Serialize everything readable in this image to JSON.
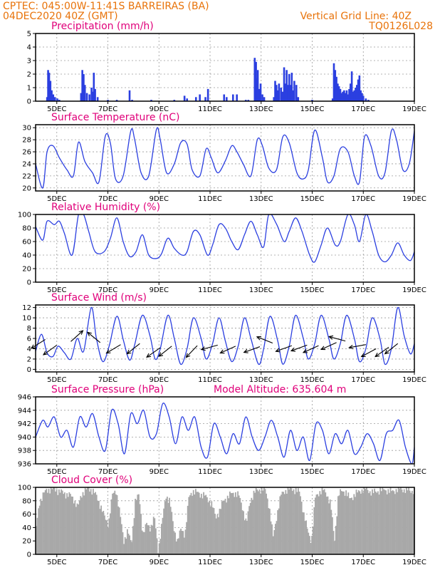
{
  "header": {
    "line1": "CPTEC:   045:00W-11:41S   BARREIRAS (BA)",
    "line2": "04DEC2020 40Z (GMT)",
    "grid_note": "Vertical Grid Line: 40Z",
    "code": "TQ0126L028"
  },
  "colors": {
    "header": "#e8730a",
    "title": "#e0007a",
    "line": "#2b3fe0",
    "bar": "#2b3fe0",
    "cloud": "#a8a8a8",
    "arrow": "#000000"
  },
  "x_tick_labels": [
    "5DEC",
    "7DEC",
    "9DEC",
    "11DEC",
    "13DEC",
    "15DEC",
    "17DEC",
    "19DEC"
  ],
  "model_altitude": "Model Altitude: 635.604  m",
  "chart_data": [
    {
      "id": "precip",
      "type": "bar",
      "title": "Precipitation (mm/h)",
      "xlim": [
        4.17,
        19.0
      ],
      "ylim": [
        0,
        5
      ],
      "yticks": [
        0,
        1,
        2,
        3,
        4,
        5
      ],
      "x": [
        4.62,
        4.66,
        4.7,
        4.75,
        4.8,
        4.86,
        4.93,
        5.02,
        5.1,
        5.95,
        6.0,
        6.05,
        6.1,
        6.18,
        6.28,
        6.36,
        6.4,
        6.45,
        6.5,
        6.6,
        7.0,
        7.35,
        7.85,
        7.95,
        8.7,
        9.6,
        10.0,
        10.1,
        10.45,
        10.6,
        10.82,
        10.92,
        11.55,
        11.65,
        11.9,
        12.05,
        12.4,
        12.5,
        12.75,
        12.8,
        12.83,
        12.87,
        12.92,
        12.98,
        13.05,
        13.12,
        13.5,
        13.55,
        13.6,
        13.65,
        13.7,
        13.78,
        13.85,
        13.9,
        13.95,
        14.0,
        14.05,
        14.1,
        14.15,
        14.2,
        14.25,
        14.3,
        14.38,
        14.45,
        15.0,
        15.8,
        15.85,
        15.9,
        15.95,
        16.0,
        16.05,
        16.1,
        16.15,
        16.2,
        16.25,
        16.3,
        16.35,
        16.4,
        16.45,
        16.5,
        16.55,
        16.6,
        16.65,
        16.7,
        16.75,
        16.8,
        16.85,
        16.9,
        16.95,
        17.0,
        17.1,
        17.2
      ],
      "values": [
        0.3,
        2.3,
        2.1,
        1.5,
        0.8,
        0.5,
        0.3,
        0.2,
        0.1,
        0.6,
        2.3,
        2.0,
        1.2,
        0.6,
        0.5,
        1.0,
        0.7,
        2.1,
        0.9,
        0.3,
        0.1,
        0.1,
        0.8,
        0.1,
        0.1,
        0.1,
        0.4,
        0.2,
        0.3,
        0.5,
        0.3,
        0.9,
        0.5,
        0.3,
        0.5,
        0.5,
        0.1,
        0.1,
        3.2,
        2.9,
        1.7,
        2.3,
        0.9,
        1.3,
        0.5,
        0.3,
        0.3,
        1.5,
        1.2,
        0.8,
        1.3,
        1.0,
        0.7,
        2.5,
        1.3,
        2.3,
        1.2,
        2.0,
        1.2,
        2.1,
        0.8,
        1.5,
        1.2,
        0.3,
        0.1,
        0.2,
        2.8,
        2.3,
        1.8,
        1.3,
        1.1,
        0.9,
        0.6,
        0.7,
        0.8,
        0.6,
        0.8,
        0.5,
        0.9,
        1.3,
        2.2,
        0.7,
        0.8,
        1.0,
        1.2,
        1.6,
        1.9,
        0.8,
        0.6,
        0.4,
        0.2,
        0.1
      ]
    },
    {
      "id": "temp",
      "type": "line",
      "title": "Surface Temperature (nC)",
      "xlim": [
        4.17,
        19.0
      ],
      "ylim": [
        19.5,
        30.5
      ],
      "yticks": [
        20,
        22,
        24,
        26,
        28,
        30
      ],
      "x": [
        4.17,
        4.45,
        4.62,
        4.85,
        5.1,
        5.4,
        5.65,
        5.85,
        6.1,
        6.4,
        6.65,
        6.9,
        7.1,
        7.3,
        7.6,
        7.9,
        8.05,
        8.3,
        8.6,
        8.9,
        9.05,
        9.3,
        9.6,
        9.85,
        10.1,
        10.3,
        10.6,
        10.85,
        11.05,
        11.3,
        11.6,
        11.85,
        12.05,
        12.3,
        12.6,
        12.85,
        13.05,
        13.3,
        13.6,
        13.85,
        14.1,
        14.4,
        14.65,
        14.85,
        15.1,
        15.4,
        15.6,
        15.85,
        16.1,
        16.4,
        16.65,
        16.85,
        17.05,
        17.3,
        17.6,
        17.85,
        18.1,
        18.3,
        18.55,
        18.8,
        19.0
      ],
      "values": [
        24,
        20,
        26,
        27,
        25,
        23,
        22,
        27.6,
        24.4,
        22.5,
        21,
        28.6,
        27.4,
        21.5,
        22,
        29.5,
        28,
        22.5,
        22,
        29.7,
        28,
        22.5,
        24,
        27.5,
        27.3,
        23,
        22,
        26.5,
        25,
        22.5,
        24.5,
        27,
        26,
        24,
        22,
        28,
        27,
        23.3,
        23,
        28.5,
        27.5,
        22.5,
        21.5,
        23,
        29.6,
        25,
        21,
        22,
        26.5,
        26,
        22,
        21,
        28.5,
        27,
        22,
        22.5,
        29.5,
        28,
        23,
        24,
        29.5
      ]
    },
    {
      "id": "rh",
      "type": "line",
      "title": "Relative Humidity (%)",
      "xlim": [
        4.17,
        19.0
      ],
      "ylim": [
        0,
        100
      ],
      "yticks": [
        0,
        20,
        40,
        60,
        80,
        100
      ],
      "x": [
        4.17,
        4.45,
        4.62,
        4.9,
        5.1,
        5.3,
        5.6,
        5.85,
        6.05,
        6.25,
        6.5,
        6.85,
        7.1,
        7.35,
        7.6,
        7.85,
        8.1,
        8.35,
        8.6,
        8.9,
        9.1,
        9.35,
        9.6,
        9.9,
        10.1,
        10.35,
        10.6,
        10.9,
        11.1,
        11.35,
        11.6,
        11.85,
        12.1,
        12.35,
        12.6,
        12.85,
        13.1,
        13.3,
        13.6,
        13.9,
        14.1,
        14.35,
        14.6,
        14.9,
        15.1,
        15.35,
        15.6,
        15.9,
        16.1,
        16.4,
        16.65,
        16.85,
        17.1,
        17.35,
        17.6,
        17.85,
        18.1,
        18.35,
        18.6,
        18.85,
        19.0
      ],
      "values": [
        82,
        62,
        90,
        85,
        90,
        72,
        40,
        100,
        100,
        75,
        45,
        45,
        65,
        95,
        60,
        38,
        45,
        70,
        40,
        35,
        42,
        65,
        50,
        40,
        45,
        75,
        70,
        40,
        55,
        85,
        80,
        60,
        48,
        70,
        90,
        70,
        52,
        100,
        86,
        60,
        75,
        95,
        75,
        40,
        30,
        55,
        80,
        55,
        60,
        100,
        85,
        60,
        100,
        75,
        40,
        30,
        40,
        58,
        40,
        32,
        45
      ]
    },
    {
      "id": "wind",
      "type": "line",
      "title": "Surface Wind (m/s)",
      "xlim": [
        4.17,
        19.0
      ],
      "ylim": [
        -0.5,
        12.5
      ],
      "yticks": [
        0,
        2,
        4,
        6,
        8,
        10,
        12
      ],
      "x": [
        4.17,
        4.4,
        4.62,
        4.85,
        5.05,
        5.3,
        5.55,
        5.8,
        6.05,
        6.35,
        6.55,
        6.8,
        7.05,
        7.35,
        7.6,
        7.85,
        8.05,
        8.35,
        8.65,
        8.85,
        9.05,
        9.35,
        9.6,
        9.85,
        10.1,
        10.35,
        10.65,
        10.85,
        11.1,
        11.35,
        11.6,
        11.85,
        12.1,
        12.35,
        12.6,
        12.9,
        13.1,
        13.35,
        13.65,
        13.85,
        14.1,
        14.35,
        14.65,
        14.85,
        15.1,
        15.35,
        15.65,
        15.85,
        16.1,
        16.35,
        16.65,
        16.85,
        17.1,
        17.35,
        17.65,
        17.85,
        18.1,
        18.35,
        18.6,
        18.85,
        19.0
      ],
      "values": [
        3.5,
        6.8,
        3.2,
        2.5,
        4.5,
        3.2,
        2.0,
        6.0,
        3.5,
        12.0,
        6.0,
        1.5,
        4.5,
        10.3,
        5.8,
        1.8,
        4.8,
        10.5,
        6.5,
        2.0,
        4.0,
        10.5,
        6.0,
        1.0,
        4.0,
        10.0,
        6.0,
        2.0,
        5.0,
        10.0,
        5.5,
        1.5,
        4.5,
        10.0,
        6.0,
        1.0,
        4.0,
        10.3,
        5.5,
        1.0,
        4.5,
        10.5,
        6.0,
        2.0,
        5.0,
        10.5,
        6.0,
        2.0,
        5.0,
        10.5,
        6.0,
        1.5,
        4.0,
        10.0,
        6.0,
        1.0,
        4.0,
        12.0,
        6.5,
        3.0,
        5.0
      ],
      "arrows": [
        {
          "x": 4.55,
          "y": 5.8,
          "u": -1.0,
          "v": -0.7
        },
        {
          "x": 5.0,
          "y": 4.7,
          "u": -1.0,
          "v": -0.8
        },
        {
          "x": 5.55,
          "y": 5.4,
          "u": 0.9,
          "v": 0.9
        },
        {
          "x": 6.7,
          "y": 5.2,
          "u": -1.0,
          "v": 0.9
        },
        {
          "x": 7.5,
          "y": 4.8,
          "u": -0.9,
          "v": -0.6
        },
        {
          "x": 8.25,
          "y": 5.0,
          "u": -0.9,
          "v": -0.8
        },
        {
          "x": 9.05,
          "y": 4.2,
          "u": -0.9,
          "v": -0.7
        },
        {
          "x": 9.5,
          "y": 4.5,
          "u": -0.8,
          "v": -0.7
        },
        {
          "x": 10.5,
          "y": 4.6,
          "u": -0.6,
          "v": -0.7
        },
        {
          "x": 11.3,
          "y": 4.7,
          "u": -1.0,
          "v": -0.3
        },
        {
          "x": 12.0,
          "y": 4.5,
          "u": -0.8,
          "v": -0.4
        },
        {
          "x": 12.95,
          "y": 4.4,
          "u": -1.0,
          "v": -0.4
        },
        {
          "x": 13.45,
          "y": 5.1,
          "u": -0.9,
          "v": 0.4
        },
        {
          "x": 14.2,
          "y": 4.6,
          "u": -1.0,
          "v": -0.4
        },
        {
          "x": 14.8,
          "y": 4.7,
          "u": -1.0,
          "v": -0.4
        },
        {
          "x": 15.25,
          "y": 4.6,
          "u": -1.0,
          "v": -0.5
        },
        {
          "x": 15.95,
          "y": 5.2,
          "u": -1.0,
          "v": -0.5
        },
        {
          "x": 16.3,
          "y": 5.5,
          "u": -1.0,
          "v": 0.3
        },
        {
          "x": 17.1,
          "y": 4.8,
          "u": -1.0,
          "v": -0.2
        },
        {
          "x": 17.5,
          "y": 4.0,
          "u": -1.0,
          "v": -0.6
        },
        {
          "x": 18.0,
          "y": 4.3,
          "u": -0.9,
          "v": -0.7
        },
        {
          "x": 18.35,
          "y": 5.0,
          "u": -0.9,
          "v": -0.8
        }
      ]
    },
    {
      "id": "pressure",
      "type": "line",
      "title": "Surface Pressure (hPa)",
      "xlim": [
        4.17,
        19.0
      ],
      "ylim": [
        936,
        946
      ],
      "yticks": [
        936,
        938,
        940,
        942,
        944,
        946
      ],
      "x": [
        4.17,
        4.45,
        4.65,
        4.9,
        5.15,
        5.4,
        5.65,
        5.9,
        6.15,
        6.4,
        6.65,
        6.9,
        7.15,
        7.4,
        7.65,
        7.9,
        8.15,
        8.4,
        8.65,
        8.9,
        9.15,
        9.4,
        9.65,
        9.9,
        10.15,
        10.4,
        10.65,
        10.9,
        11.15,
        11.4,
        11.65,
        11.9,
        12.15,
        12.4,
        12.65,
        12.9,
        13.15,
        13.4,
        13.65,
        13.9,
        14.15,
        14.4,
        14.65,
        14.9,
        15.15,
        15.4,
        15.65,
        15.9,
        16.15,
        16.4,
        16.65,
        16.9,
        17.15,
        17.4,
        17.65,
        17.9,
        18.15,
        18.4,
        18.65,
        18.9,
        19.0
      ],
      "values": [
        940,
        942.5,
        941.5,
        943,
        940,
        941,
        938.5,
        943,
        941.5,
        943.5,
        940,
        938,
        944,
        942,
        937.5,
        943.5,
        942,
        944,
        940,
        940.5,
        945,
        943,
        939,
        943,
        941,
        943,
        938.5,
        937,
        942,
        940,
        937.5,
        940.5,
        939,
        943,
        940,
        938,
        940,
        942.5,
        940,
        937,
        941,
        938,
        940,
        936.5,
        942,
        941,
        937.5,
        940.5,
        939,
        941,
        937.5,
        938.5,
        940.5,
        939,
        936.5,
        940.5,
        941,
        942.5,
        938.5,
        936,
        938.5
      ]
    },
    {
      "id": "cloud",
      "type": "area",
      "title": "Cloud Cover (%)",
      "xlim": [
        4.17,
        19.0
      ],
      "ylim": [
        0,
        100
      ],
      "yticks": [
        0,
        20,
        40,
        60,
        80,
        100
      ],
      "x": [
        4.17,
        4.3,
        4.45,
        4.6,
        4.75,
        4.9,
        5.05,
        5.2,
        5.35,
        5.5,
        5.65,
        5.8,
        5.95,
        6.1,
        6.25,
        6.4,
        6.55,
        6.7,
        6.85,
        7.0,
        7.15,
        7.3,
        7.45,
        7.6,
        7.75,
        7.9,
        8.05,
        8.2,
        8.35,
        8.5,
        8.65,
        8.8,
        8.95,
        9.1,
        9.25,
        9.4,
        9.55,
        9.7,
        9.85,
        10.0,
        10.15,
        10.3,
        10.45,
        10.6,
        10.75,
        10.9,
        11.05,
        11.2,
        11.35,
        11.5,
        11.65,
        11.8,
        11.95,
        12.1,
        12.25,
        12.4,
        12.55,
        12.7,
        12.85,
        13.0,
        13.15,
        13.3,
        13.45,
        13.6,
        13.75,
        13.9,
        14.05,
        14.2,
        14.35,
        14.5,
        14.65,
        14.8,
        14.95,
        15.1,
        15.25,
        15.4,
        15.55,
        15.7,
        15.85,
        16.0,
        16.15,
        16.3,
        16.45,
        16.6,
        16.75,
        16.9,
        17.05,
        17.2,
        17.35,
        17.5,
        17.65,
        17.8,
        17.95,
        18.1,
        18.25,
        18.4,
        18.55,
        18.7,
        18.85,
        19.0
      ],
      "values": [
        40,
        78,
        90,
        96,
        98,
        97,
        95,
        92,
        90,
        88,
        82,
        70,
        90,
        96,
        98,
        95,
        85,
        72,
        55,
        45,
        88,
        96,
        60,
        20,
        35,
        15,
        80,
        88,
        30,
        45,
        40,
        55,
        5,
        48,
        88,
        80,
        40,
        20,
        38,
        30,
        85,
        95,
        92,
        90,
        88,
        82,
        75,
        55,
        65,
        80,
        85,
        90,
        92,
        88,
        70,
        45,
        80,
        92,
        96,
        98,
        96,
        70,
        25,
        60,
        88,
        95,
        97,
        98,
        95,
        92,
        60,
        35,
        20,
        85,
        93,
        96,
        90,
        75,
        20,
        88,
        95,
        93,
        82,
        88,
        92,
        96,
        98,
        95,
        92,
        94,
        96,
        97,
        95,
        94,
        96,
        98,
        97,
        96,
        95,
        96
      ]
    }
  ]
}
